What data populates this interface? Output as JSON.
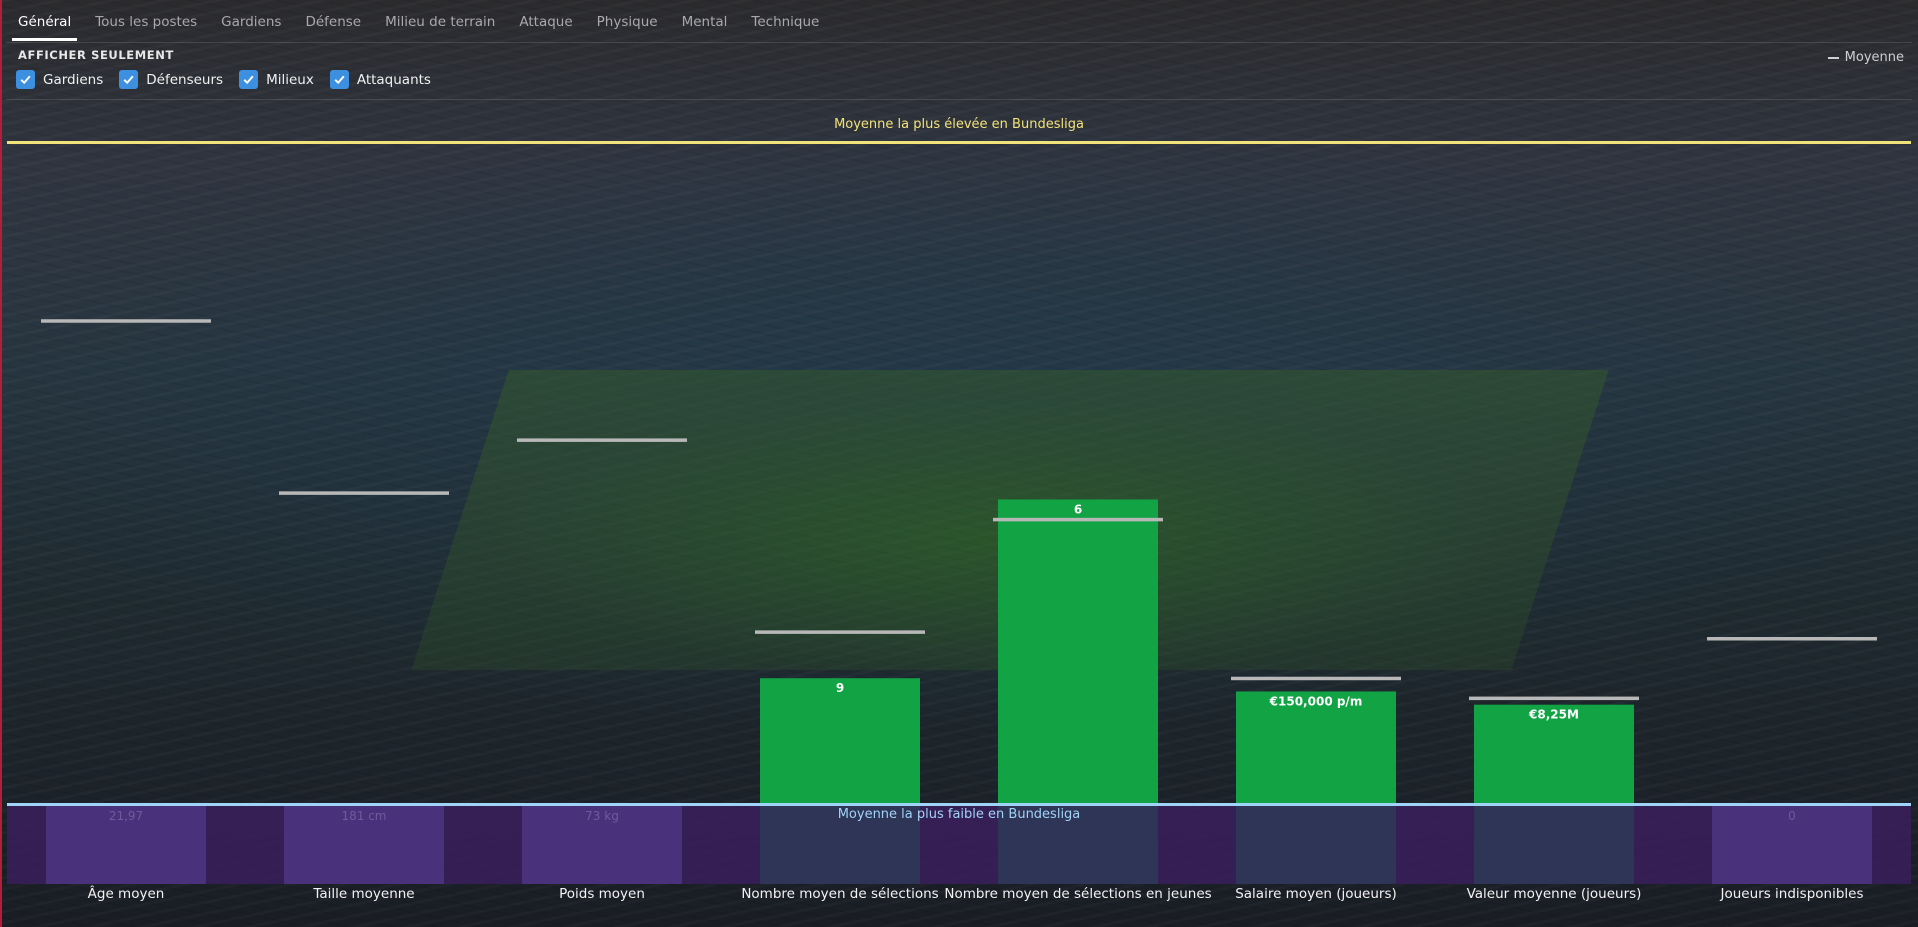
{
  "tabs": [
    {
      "label": "Général",
      "active": true
    },
    {
      "label": "Tous les postes",
      "active": false
    },
    {
      "label": "Gardiens",
      "active": false
    },
    {
      "label": "Défense",
      "active": false
    },
    {
      "label": "Milieu de terrain",
      "active": false
    },
    {
      "label": "Attaque",
      "active": false
    },
    {
      "label": "Physique",
      "active": false
    },
    {
      "label": "Mental",
      "active": false
    },
    {
      "label": "Technique",
      "active": false
    }
  ],
  "filter": {
    "title": "AFFICHER SEULEMENT",
    "options": [
      {
        "label": "Gardiens",
        "checked": true
      },
      {
        "label": "Défenseurs",
        "checked": true
      },
      {
        "label": "Milieux",
        "checked": true
      },
      {
        "label": "Attaquants",
        "checked": true
      }
    ]
  },
  "legend": {
    "average_label": "Moyenne"
  },
  "colors": {
    "bar": "#12a444",
    "highest_line": "#f2e27a",
    "lowest_line": "#9fd3f7",
    "lower_band": "#3a1f5c",
    "lower_band_cell": "#4b3480",
    "average_marker": "#b8b8b8",
    "checkbox": "#3d8fe0"
  },
  "chart_data": {
    "type": "bar",
    "highest_label": "Moyenne la plus élevée en Bundesliga",
    "lowest_label": "Moyenne la plus faible en Bundesliga",
    "categories": [
      "Âge moyen",
      "Taille moyenne",
      "Poids moyen",
      "Nombre moyen de sélections",
      "Nombre moyen de sélections en jeunes",
      "Salaire moyen (joueurs)",
      "Valeur moyenne (joueurs)",
      "Joueurs indisponibles"
    ],
    "value_labels": [
      "21,97",
      "181 cm",
      "73 kg",
      "9",
      "6",
      "€150,000 p/m",
      "€8,25M",
      "0"
    ],
    "level": [
      0,
      0,
      0,
      0.19,
      0.46,
      0.17,
      0.15,
      0
    ],
    "league_average_level": [
      0.73,
      0.47,
      0.55,
      0.26,
      0.43,
      0.19,
      0.16,
      0.25
    ],
    "scale_note": "",
    "grid": false,
    "legend_position": "top-right"
  }
}
